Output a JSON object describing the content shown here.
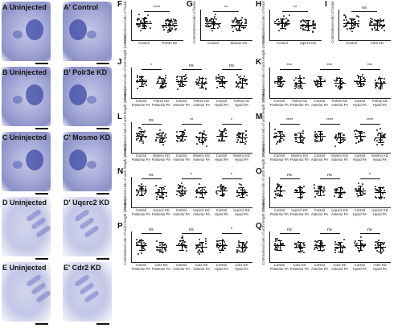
{
  "photo_rows": [
    {
      "left_letter": "A",
      "left_label": "Uninjected",
      "right_letter": "A'",
      "right_label": "Control",
      "style": "dark"
    },
    {
      "left_letter": "B",
      "left_label": "Uninjected",
      "right_letter": "B'",
      "right_label": "Polr3e KD",
      "style": "dark"
    },
    {
      "left_letter": "C",
      "left_label": "Uninjected",
      "right_letter": "C'",
      "right_label": "Mosmo KD",
      "style": "dark"
    },
    {
      "left_letter": "D",
      "left_label": "Uninjected",
      "right_letter": "D'",
      "right_label": "Uqcrc2 KD",
      "style": "pale"
    },
    {
      "left_letter": "E",
      "left_label": "Uninjected",
      "right_letter": "E'",
      "right_label": "Cdr2 KD",
      "style": "pale"
    }
  ],
  "chart_data": [
    {
      "type": "scatter",
      "panel": "F",
      "ylabel": "Contralateral ratio of facial width (relative)",
      "categories": [
        "Control",
        "Polr3e KD"
      ],
      "significance": "****"
    },
    {
      "type": "scatter",
      "panel": "G",
      "ylabel": "Contralateral ratio of facial width (relative)",
      "categories": [
        "Control",
        "Mosmo KD"
      ],
      "significance": "**"
    },
    {
      "type": "scatter",
      "panel": "H",
      "ylabel": "Contralateral ratio of facial width (relative)",
      "categories": [
        "Control",
        "Uqcrc2 KD"
      ],
      "significance": "**"
    },
    {
      "type": "scatter",
      "panel": "I",
      "ylabel": "Contralateral ratio of facial width (relative)",
      "categories": [
        "Control",
        "Cdr2 KD"
      ],
      "significance": "ns"
    },
    {
      "type": "scatter",
      "panel": "J",
      "ylabel": "Contralateral ratio of arch length (relative)",
      "categories": [
        "Control Posterior PA",
        "Polr3e KD Posterior PA",
        "Control Anterior PA",
        "Polr3e KD Anterior PA",
        "Control Hyoid PA",
        "Polr3e KD Hyoid PA"
      ],
      "significance": [
        "*",
        "ns",
        "ns"
      ]
    },
    {
      "type": "scatter",
      "panel": "K",
      "ylabel": "Contralateral ratio of arch length (relative)",
      "categories": [
        "Control Posterior PA",
        "Polr3e KD Posterior PA",
        "Control Anterior PA",
        "Polr3e KD Anterior PA",
        "Control Hyoid PA",
        "Polr3e KD Hyoid PA"
      ],
      "significance": [
        "***",
        "***",
        "***"
      ]
    },
    {
      "type": "scatter",
      "panel": "L",
      "ylabel": "Contralateral ratio of arch length (relative)",
      "categories": [
        "Control Posterior PA",
        "Mosmo KD Posterior PA",
        "Control Anterior PA",
        "Mosmo KD Anterior PA",
        "Control Hyoid PA",
        "Mosmo KD Hyoid PA"
      ],
      "significance": [
        "ns",
        "**",
        "*"
      ]
    },
    {
      "type": "scatter",
      "panel": "M",
      "ylabel": "Contralateral ratio of arch length (relative)",
      "categories": [
        "Control Posterior PA",
        "Mosmo KD Posterior PA",
        "Control Anterior PA",
        "Mosmo KD Anterior PA",
        "Control Hyoid PA",
        "Mosmo KD Hyoid PA"
      ],
      "significance": [
        "****",
        "****",
        "****"
      ]
    },
    {
      "type": "scatter",
      "panel": "N",
      "ylabel": "Contralateral ratio of arch length (relative)",
      "categories": [
        "Control Posterior PA",
        "Uqcrc2 KD Posterior PA",
        "Control Anterior PA",
        "Uqcrc2 KD Anterior PA",
        "Control Hyoid PA",
        "Uqcrc2 KD Hyoid PA"
      ],
      "significance": [
        "ns",
        "*",
        "*"
      ]
    },
    {
      "type": "scatter",
      "panel": "O",
      "ylabel": "Contralateral ratio of arch length (relative)",
      "categories": [
        "Control Posterior PA",
        "Uqcrc2 KD Posterior PA",
        "Control Anterior PA",
        "Uqcrc2 KD Anterior PA",
        "Control Hyoid PA",
        "Uqcrc2 KD Hyoid PA"
      ],
      "significance": [
        "ns",
        "ns",
        "*"
      ]
    },
    {
      "type": "scatter",
      "panel": "P",
      "ylabel": "Contralateral ratio of arch length (relative)",
      "categories": [
        "Control Posterior PA",
        "Cdr2 KD Posterior PA",
        "Control Anterior PA",
        "Cdr2 KD Anterior PA",
        "Control Hyoid PA",
        "Cdr2 KD Hyoid PA"
      ],
      "significance": [
        "ns",
        "ns",
        "*"
      ]
    },
    {
      "type": "scatter",
      "panel": "Q",
      "ylabel": "Contralateral ratio of arch length (relative)",
      "categories": [
        "Control Posterior PA",
        "Cdr2 KD Posterior PA",
        "Control Anterior PA",
        "Cdr2 KD Anterior PA",
        "Control Hyoid PA",
        "Cdr2 KD Hyoid PA"
      ],
      "significance": [
        "ns",
        "ns",
        "ns"
      ]
    }
  ]
}
